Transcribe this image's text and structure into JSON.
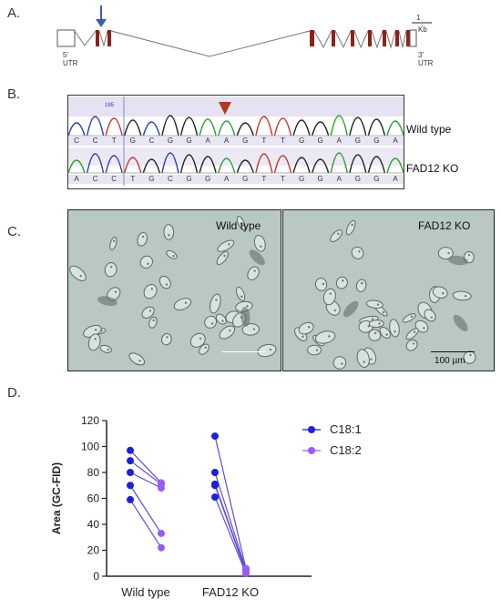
{
  "panels": {
    "a": {
      "label": "A.",
      "utr5": "5'\nUTR",
      "utr3": "3'\nUTR",
      "scale_value": "1",
      "scale_unit": "Kb"
    },
    "b": {
      "label": "B.",
      "position_marker": "185",
      "wild_type_label": "Wild type",
      "ko_label": "FAD12 KO",
      "wt_sequence": [
        "C",
        "C",
        "T",
        "G",
        "C",
        "G",
        "G",
        "A",
        "A",
        "G",
        "T",
        "T",
        "G",
        "G",
        "A",
        "G",
        "G",
        "A"
      ],
      "ko_sequence": [
        "A",
        "C",
        "C",
        "T",
        "G",
        "C",
        "G",
        "G",
        "A",
        "G",
        "T",
        "T",
        "G",
        "G",
        "A",
        "G",
        "G",
        "A"
      ]
    },
    "c": {
      "label": "C.",
      "left_title": "Wild type",
      "right_title": "FAD12 KO",
      "scale_bar_text": "100 µm"
    },
    "d": {
      "label": "D."
    }
  },
  "colors": {
    "c18_1": "#1f1fd6",
    "c18_2": "#9a5cf0",
    "exon": "#8b2316",
    "arrow_a": "#3a5ea8",
    "arrow_b": "#b03a1a"
  },
  "chart_data": {
    "type": "scatter",
    "title": "",
    "xlabel": "",
    "ylabel": "Area (GC-FID)",
    "categories": [
      "Wild type",
      "FAD12 KO"
    ],
    "ylim": [
      0,
      120
    ],
    "yticks": [
      0,
      20,
      40,
      60,
      80,
      100,
      120
    ],
    "legend_position": "top-right",
    "series": [
      {
        "name": "C18:1",
        "values": {
          "Wild type": [
            97,
            89,
            80,
            70,
            59
          ],
          "FAD12 KO": [
            108,
            80,
            71,
            70,
            61
          ]
        }
      },
      {
        "name": "C18:2",
        "values": {
          "Wild type": [
            72,
            71,
            68,
            33,
            22
          ],
          "FAD12 KO": [
            6,
            5,
            4,
            3,
            2
          ]
        }
      }
    ],
    "pairs": [
      {
        "group": "Wild type",
        "c18_1": 97,
        "c18_2": 72
      },
      {
        "group": "Wild type",
        "c18_1": 89,
        "c18_2": 71
      },
      {
        "group": "Wild type",
        "c18_1": 80,
        "c18_2": 68
      },
      {
        "group": "Wild type",
        "c18_1": 70,
        "c18_2": 33
      },
      {
        "group": "Wild type",
        "c18_1": 59,
        "c18_2": 22
      },
      {
        "group": "FAD12 KO",
        "c18_1": 108,
        "c18_2": 6
      },
      {
        "group": "FAD12 KO",
        "c18_1": 80,
        "c18_2": 5
      },
      {
        "group": "FAD12 KO",
        "c18_1": 71,
        "c18_2": 4
      },
      {
        "group": "FAD12 KO",
        "c18_1": 70,
        "c18_2": 3
      },
      {
        "group": "FAD12 KO",
        "c18_1": 61,
        "c18_2": 2
      }
    ]
  }
}
